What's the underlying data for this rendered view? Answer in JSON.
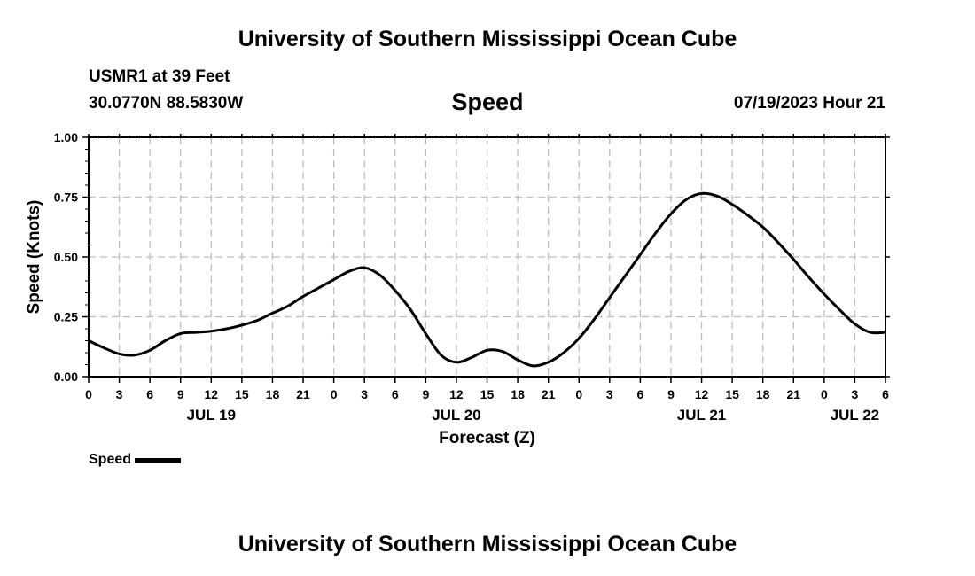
{
  "header": {
    "title_top": "University of Southern Mississippi Ocean Cube",
    "station": "USMR1 at 39 Feet",
    "coords": "30.0770N  88.5830W",
    "datetime": "07/19/2023 Hour 21",
    "title_bottom": "University of Southern Mississippi Ocean Cube"
  },
  "chart_data": {
    "type": "line",
    "title": "Speed",
    "xlabel": "Forecast (Z)",
    "ylabel": "Speed (Knots)",
    "xlim": [
      0,
      78
    ],
    "ylim": [
      0,
      1.0
    ],
    "yticks": [
      0.0,
      0.25,
      0.5,
      0.75,
      1.0
    ],
    "ytick_labels": [
      "0.00",
      "0.25",
      "0.50",
      "0.75",
      "1.00"
    ],
    "xtick_hours": [
      0,
      3,
      6,
      9,
      12,
      15,
      18,
      21,
      24,
      27,
      30,
      33,
      36,
      39,
      42,
      45,
      48,
      51,
      54,
      57,
      60,
      63,
      66,
      69,
      72,
      75,
      78
    ],
    "xtick_labels": [
      "0",
      "3",
      "6",
      "9",
      "12",
      "15",
      "18",
      "21",
      "0",
      "3",
      "6",
      "9",
      "12",
      "15",
      "18",
      "21",
      "0",
      "3",
      "6",
      "9",
      "12",
      "15",
      "18",
      "21",
      "0",
      "3",
      "6"
    ],
    "date_labels": [
      {
        "hour": 12,
        "label": "JUL 19"
      },
      {
        "hour": 36,
        "label": "JUL 20"
      },
      {
        "hour": 60,
        "label": "JUL 21"
      },
      {
        "hour": 75,
        "label": "JUL 22"
      }
    ],
    "grid": true,
    "legend": {
      "position": "bottom-left",
      "entries": [
        "Speed"
      ]
    },
    "series": [
      {
        "name": "Speed",
        "color": "#000000",
        "x": [
          0,
          1.5,
          3,
          4.5,
          6,
          7.5,
          9,
          10.5,
          12,
          13.5,
          15,
          16.5,
          18,
          19.5,
          21,
          22.5,
          24,
          25.5,
          27,
          28.5,
          30,
          31.5,
          33,
          34.5,
          36,
          37.5,
          39,
          40.5,
          42,
          43.5,
          45,
          46.5,
          48,
          49.5,
          51,
          52.5,
          54,
          55.5,
          57,
          58.5,
          60,
          61.5,
          63,
          64.5,
          66,
          67.5,
          69,
          70.5,
          72,
          73.5,
          75,
          76.5,
          78
        ],
        "values": [
          0.15,
          0.12,
          0.095,
          0.09,
          0.11,
          0.15,
          0.18,
          0.185,
          0.19,
          0.2,
          0.215,
          0.235,
          0.265,
          0.295,
          0.335,
          0.37,
          0.405,
          0.44,
          0.455,
          0.425,
          0.36,
          0.28,
          0.18,
          0.09,
          0.06,
          0.08,
          0.11,
          0.105,
          0.07,
          0.045,
          0.06,
          0.1,
          0.16,
          0.24,
          0.33,
          0.42,
          0.51,
          0.6,
          0.68,
          0.74,
          0.765,
          0.755,
          0.72,
          0.675,
          0.625,
          0.56,
          0.49,
          0.415,
          0.345,
          0.28,
          0.22,
          0.185,
          0.185
        ]
      }
    ]
  }
}
